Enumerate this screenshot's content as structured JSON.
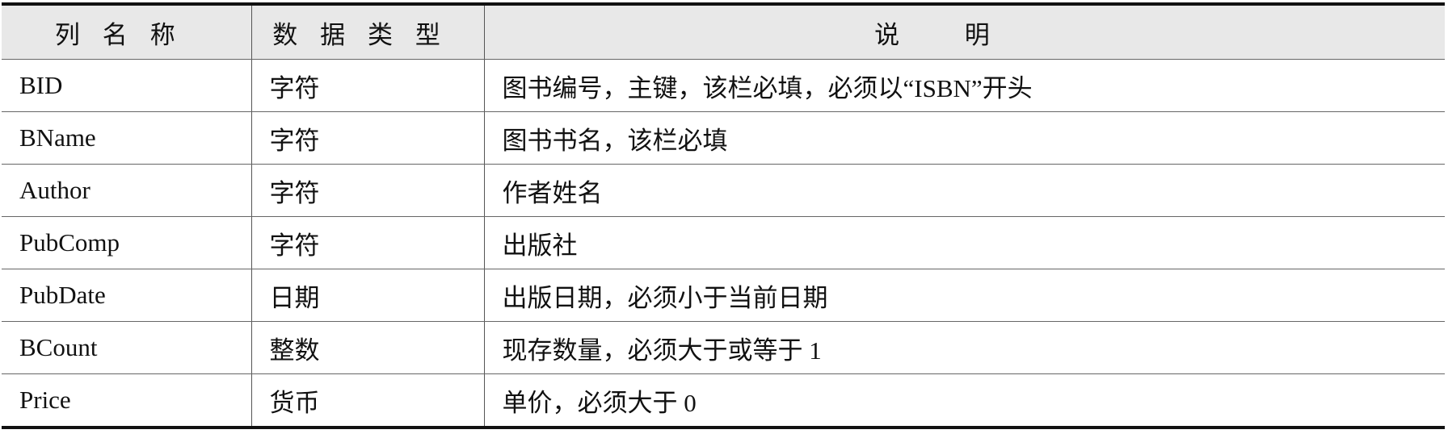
{
  "headers": [
    "列名称",
    "数据类型",
    "说明"
  ],
  "rows": [
    {
      "name": "BID",
      "type": "字符",
      "desc": "图书编号，主键，该栏必填，必须以“ISBN”开头"
    },
    {
      "name": "BName",
      "type": "字符",
      "desc": "图书书名，该栏必填"
    },
    {
      "name": "Author",
      "type": "字符",
      "desc": "作者姓名"
    },
    {
      "name": "PubComp",
      "type": "字符",
      "desc": "出版社"
    },
    {
      "name": "PubDate",
      "type": "日期",
      "desc": "出版日期，必须小于当前日期"
    },
    {
      "name": "BCount",
      "type": "整数",
      "desc": "现存数量，必须大于或等于 1"
    },
    {
      "name": "Price",
      "type": "货币",
      "desc": "单价，必须大于 0"
    }
  ]
}
